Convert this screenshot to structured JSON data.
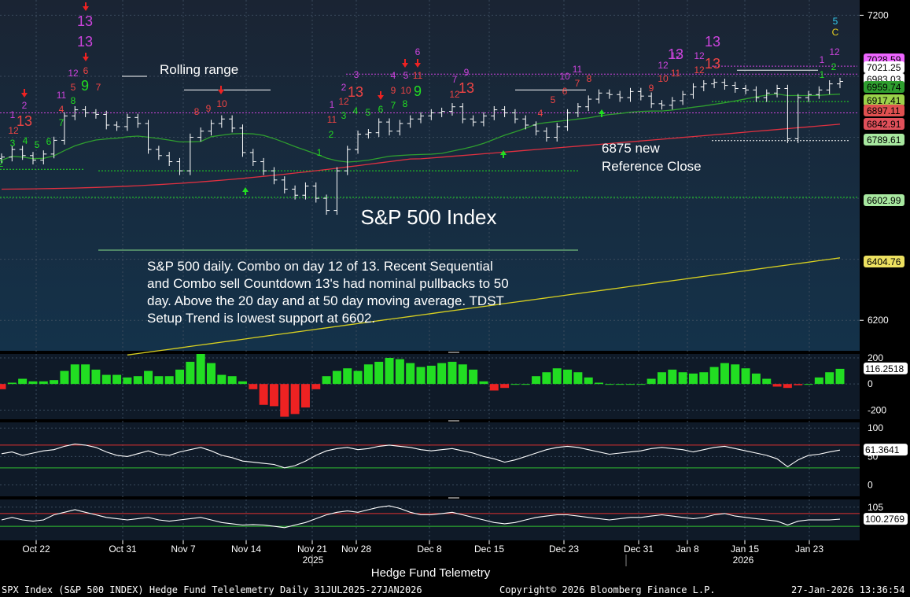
{
  "chart_data": {
    "type": "candlestick",
    "title": "S&P 500 Index",
    "x_title": "Hedge Fund Telemetry",
    "x_ticks": [
      "Oct 22",
      "Oct 31",
      "Nov 7",
      "Nov 14",
      "Nov 21",
      "Nov 28",
      "Dec 8",
      "Dec 15",
      "Dec 23",
      "Dec 31",
      "Jan 8",
      "Jan 15",
      "Jan 23"
    ],
    "x_years": [
      "2025",
      "2026"
    ],
    "main_panel": {
      "ylim": [
        6100,
        7250
      ],
      "y_ticks": [
        7200,
        6200
      ],
      "price_close": [
        6735,
        6760,
        6740,
        6725,
        6745,
        6790,
        6870,
        6890,
        6880,
        6875,
        6840,
        6835,
        6865,
        6845,
        6760,
        6740,
        6720,
        6690,
        6800,
        6820,
        6845,
        6860,
        6830,
        6750,
        6720,
        6690,
        6660,
        6630,
        6610,
        6640,
        6600,
        6560,
        6690,
        6760,
        6810,
        6815,
        6850,
        6820,
        6845,
        6860,
        6870,
        6880,
        6885,
        6900,
        6860,
        6850,
        6870,
        6890,
        6880,
        6860,
        6840,
        6820,
        6800,
        6835,
        6880,
        6900,
        6925,
        6945,
        6940,
        6930,
        6950,
        6935,
        6910,
        6905,
        6920,
        6940,
        6965,
        6975,
        6980,
        6970,
        6960,
        6955,
        6930,
        6945,
        6960,
        6795,
        6930,
        6940,
        6955,
        6975,
        6983.03
      ],
      "moving_averages": [
        {
          "name": "20 day",
          "color": "#2f9e2f",
          "last": 6917.41
        },
        {
          "name": "50 day",
          "color": "#e03040",
          "last": 6842.91
        },
        {
          "name": "200 day",
          "color": "#d8d020",
          "last": 6404.76
        }
      ],
      "price_labels": [
        {
          "text": "7028.59",
          "bg": "#ee66ff",
          "fg": "#000"
        },
        {
          "text": "7021.25",
          "bg": "#ffffff",
          "fg": "#000"
        },
        {
          "text": "6983.03",
          "bg": "#ffffff",
          "fg": "#000"
        },
        {
          "text": "6959.74",
          "bg": "#2f9e2f",
          "fg": "#000"
        },
        {
          "text": "6917.41",
          "bg": "#9bd24a",
          "fg": "#000"
        },
        {
          "text": "6897.11",
          "bg": "#e05050",
          "fg": "#000"
        },
        {
          "text": "6842.91",
          "bg": "#e0505a",
          "fg": "#000"
        },
        {
          "text": "6789.61",
          "bg": "#a8e8a0",
          "fg": "#000"
        },
        {
          "text": "6602.99",
          "bg": "#a8e8a0",
          "fg": "#000"
        },
        {
          "text": "6404.76",
          "bg": "#ece060",
          "fg": "#000"
        }
      ],
      "annotations": {
        "rolling_range": "Rolling range",
        "reference_close": [
          "6875 new",
          "Reference Close"
        ],
        "commentary": [
          "S&P 500 daily.  Combo on day 12 of 13. Recent Sequential",
          "and Combo sell Countdown 13's had nominal pullbacks to 50",
          "day.  Above the 20 day and at 50 day moving average. TDST",
          "Setup Trend is lowest support at 6602."
        ],
        "top_right_5": "5",
        "top_right_c": "C"
      },
      "demark_labels": [
        {
          "t": "2",
          "color": "#22dd22",
          "x": 1,
          "y": 212
        },
        {
          "t": "3",
          "color": "#22dd22",
          "x": 16,
          "y": 186
        },
        {
          "t": "4",
          "color": "#22dd22",
          "x": 32,
          "y": 183
        },
        {
          "t": "5",
          "color": "#22dd22",
          "x": 47,
          "y": 188
        },
        {
          "t": "6",
          "color": "#22dd22",
          "x": 62,
          "y": 184
        },
        {
          "t": "7",
          "color": "#22dd22",
          "x": 78,
          "y": 160
        },
        {
          "t": "8",
          "color": "#22dd22",
          "x": 93,
          "y": 132
        },
        {
          "t": "1",
          "color": "#cc44dd",
          "x": 16,
          "y": 150
        },
        {
          "t": "2",
          "color": "#cc44dd",
          "x": 31,
          "y": 138
        },
        {
          "t": "12",
          "color": "#ee4444",
          "x": 17,
          "y": 170
        },
        {
          "t": "4",
          "color": "#ee4444",
          "x": 78,
          "y": 143
        },
        {
          "t": "5",
          "color": "#ee4444",
          "x": 93,
          "y": 115
        },
        {
          "t": "11",
          "color": "#cc44dd",
          "x": 78,
          "y": 125
        },
        {
          "t": "12",
          "color": "#cc44dd",
          "x": 93,
          "y": 97
        },
        {
          "t": "6",
          "color": "#ee4444",
          "x": 109,
          "y": 94
        },
        {
          "t": "7",
          "color": "#ee4444",
          "x": 125,
          "y": 115
        },
        {
          "t": "8",
          "color": "#ee4444",
          "x": 250,
          "y": 146
        },
        {
          "t": "9",
          "color": "#ee4444",
          "x": 265,
          "y": 142
        },
        {
          "t": "10",
          "color": "#ee4444",
          "x": 282,
          "y": 136
        },
        {
          "t": "1",
          "color": "#22dd22",
          "x": 406,
          "y": 198
        },
        {
          "t": "2",
          "color": "#22dd22",
          "x": 421,
          "y": 175
        },
        {
          "t": "3",
          "color": "#22dd22",
          "x": 437,
          "y": 151
        },
        {
          "t": "4",
          "color": "#22dd22",
          "x": 452,
          "y": 145
        },
        {
          "t": "5",
          "color": "#22dd22",
          "x": 468,
          "y": 147
        },
        {
          "t": "6",
          "color": "#22dd22",
          "x": 484,
          "y": 143
        },
        {
          "t": "7",
          "color": "#22dd22",
          "x": 500,
          "y": 138
        },
        {
          "t": "8",
          "color": "#22dd22",
          "x": 515,
          "y": 136
        },
        {
          "t": "1",
          "color": "#cc44dd",
          "x": 422,
          "y": 137
        },
        {
          "t": "2",
          "color": "#cc44dd",
          "x": 437,
          "y": 115
        },
        {
          "t": "3",
          "color": "#cc44dd",
          "x": 453,
          "y": 99
        },
        {
          "t": "11",
          "color": "#ee4444",
          "x": 422,
          "y": 156
        },
        {
          "t": "12",
          "color": "#ee4444",
          "x": 437,
          "y": 133
        },
        {
          "t": "9",
          "color": "#ee4444",
          "x": 500,
          "y": 119
        },
        {
          "t": "10",
          "color": "#ee4444",
          "x": 516,
          "y": 119
        },
        {
          "t": "11",
          "color": "#ee4444",
          "x": 531,
          "y": 100
        },
        {
          "t": "4",
          "color": "#cc44dd",
          "x": 500,
          "y": 100
        },
        {
          "t": "5",
          "color": "#cc44dd",
          "x": 516,
          "y": 100
        },
        {
          "t": "6",
          "color": "#cc44dd",
          "x": 531,
          "y": 70
        },
        {
          "t": "7",
          "color": "#cc44dd",
          "x": 578,
          "y": 105
        },
        {
          "t": "9",
          "color": "#cc44dd",
          "x": 593,
          "y": 96
        },
        {
          "t": "12",
          "color": "#ee4444",
          "x": 578,
          "y": 124
        },
        {
          "t": "4",
          "color": "#ee4444",
          "x": 687,
          "y": 148
        },
        {
          "t": "5",
          "color": "#ee4444",
          "x": 703,
          "y": 131
        },
        {
          "t": "6",
          "color": "#ee4444",
          "x": 718,
          "y": 120
        },
        {
          "t": "7",
          "color": "#ee4444",
          "x": 734,
          "y": 110
        },
        {
          "t": "8",
          "color": "#ee4444",
          "x": 749,
          "y": 104
        },
        {
          "t": "10",
          "color": "#cc44dd",
          "x": 718,
          "y": 101
        },
        {
          "t": "11",
          "color": "#cc44dd",
          "x": 734,
          "y": 92
        },
        {
          "t": "9",
          "color": "#ee4444",
          "x": 828,
          "y": 116
        },
        {
          "t": "10",
          "color": "#ee4444",
          "x": 843,
          "y": 104
        },
        {
          "t": "11",
          "color": "#ee4444",
          "x": 859,
          "y": 97
        },
        {
          "t": "12",
          "color": "#cc44dd",
          "x": 843,
          "y": 87
        },
        {
          "t": "12",
          "color": "#cc44dd",
          "x": 859,
          "y": 75
        },
        {
          "t": "12",
          "color": "#cc44dd",
          "x": 889,
          "y": 75
        },
        {
          "t": "12",
          "color": "#ee4444",
          "x": 889,
          "y": 93
        },
        {
          "t": "1",
          "color": "#22dd22",
          "x": 1045,
          "y": 99
        },
        {
          "t": "2",
          "color": "#22dd22",
          "x": 1060,
          "y": 89
        },
        {
          "t": "1",
          "color": "#cc44dd",
          "x": 1045,
          "y": 80
        },
        {
          "t": "12",
          "color": "#cc44dd",
          "x": 1061,
          "y": 70
        }
      ],
      "demark_big": [
        {
          "t": "13",
          "color": "#ee4444",
          "x": 31,
          "y": 160
        },
        {
          "t": "13",
          "color": "#cc44dd",
          "x": 108,
          "y": 33
        },
        {
          "t": "13",
          "color": "#cc44dd",
          "x": 108,
          "y": 59
        },
        {
          "t": "9",
          "color": "#22dd22",
          "x": 108,
          "y": 115
        },
        {
          "t": "13",
          "color": "#ee4444",
          "x": 452,
          "y": 123
        },
        {
          "t": "9",
          "color": "#22dd22",
          "x": 531,
          "y": 122
        },
        {
          "t": "13",
          "color": "#ee4444",
          "x": 593,
          "y": 118
        },
        {
          "t": "13",
          "color": "#cc44dd",
          "x": 859,
          "y": 75
        },
        {
          "t": "13",
          "color": "#cc44dd",
          "x": 906,
          "y": 59
        },
        {
          "t": "13",
          "color": "#ee4444",
          "x": 906,
          "y": 87
        }
      ]
    },
    "oscillator1": {
      "ylim": [
        -270,
        230
      ],
      "y_ticks": [
        200,
        0,
        -200
      ],
      "last": 116.2518,
      "values": [
        -40,
        10,
        40,
        20,
        20,
        30,
        100,
        150,
        150,
        110,
        70,
        70,
        50,
        60,
        100,
        60,
        60,
        110,
        170,
        230,
        160,
        70,
        60,
        20,
        -40,
        -160,
        -170,
        -250,
        -230,
        -180,
        -40,
        60,
        100,
        120,
        100,
        150,
        170,
        200,
        190,
        160,
        130,
        140,
        160,
        170,
        150,
        110,
        20,
        -50,
        -30,
        0,
        0,
        60,
        90,
        120,
        110,
        90,
        50,
        10,
        0,
        0,
        0,
        0,
        40,
        90,
        110,
        90,
        80,
        90,
        130,
        160,
        150,
        120,
        80,
        40,
        -20,
        -30,
        -10,
        0,
        50,
        90,
        116.25
      ]
    },
    "oscillator2": {
      "ylim": [
        -20,
        110
      ],
      "y_ticks": [
        100,
        50,
        0
      ],
      "last": 61.3641,
      "bands": [
        70,
        30
      ],
      "values": [
        55,
        58,
        52,
        56,
        60,
        62,
        68,
        72,
        70,
        66,
        58,
        52,
        50,
        55,
        60,
        54,
        52,
        58,
        62,
        66,
        60,
        52,
        48,
        42,
        40,
        38,
        36,
        30,
        34,
        42,
        52,
        60,
        64,
        66,
        62,
        64,
        68,
        70,
        68,
        66,
        62,
        60,
        62,
        64,
        60,
        56,
        50,
        46,
        40,
        44,
        50,
        56,
        62,
        66,
        68,
        66,
        62,
        58,
        54,
        56,
        58,
        60,
        64,
        66,
        64,
        62,
        58,
        62,
        66,
        68,
        64,
        60,
        56,
        52,
        46,
        32,
        44,
        52,
        54,
        58,
        61.36
      ]
    },
    "oscillator3": {
      "ylim": [
        92,
        108
      ],
      "y_ticks": [
        105
      ],
      "last": 100.2769,
      "bands": [
        102.5,
        97.5
      ],
      "values": [
        100,
        101,
        100,
        99.5,
        100,
        102,
        103,
        104,
        103,
        102,
        101,
        100.5,
        100,
        100.5,
        101,
        100,
        99.5,
        100,
        100.5,
        101,
        100,
        99,
        98.5,
        98,
        98.2,
        98,
        97.5,
        97,
        98,
        99,
        100.5,
        102,
        103,
        103.5,
        103,
        104,
        105,
        105.5,
        104.5,
        103,
        102,
        102,
        102.5,
        103,
        102,
        101,
        100,
        99,
        98.5,
        99,
        100,
        101,
        101.5,
        102,
        102,
        101.5,
        101,
        100.5,
        100,
        100.5,
        101,
        101,
        101.5,
        102,
        101.5,
        101,
        100.5,
        101,
        102,
        102.5,
        101.5,
        101,
        100.5,
        100,
        99.5,
        98,
        99.5,
        100,
        100,
        100,
        100.28
      ]
    }
  },
  "footer": {
    "left": "SPX Index (S&P 500 INDEX) Hedge Fund Telelemetry Daily 31JUL2025-27JAN2026",
    "center": "Copyright© 2026 Bloomberg Finance L.P.",
    "right": "27-Jan-2026 13:36:54"
  },
  "colors": {
    "panel_bg": "#0f1a28",
    "main_bg_top": "#1a2433",
    "main_bg_bottom": "#14324a",
    "grid": "#3a4a5c",
    "bar_up": "#22dd22",
    "bar_down": "#ee2222",
    "line_white": "#ffffff",
    "band_red": "#e03030",
    "band_green": "#30c030"
  }
}
